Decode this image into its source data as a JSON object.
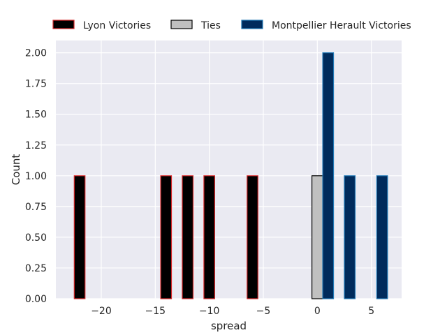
{
  "chart_data": {
    "type": "bar",
    "xlabel": "spread",
    "ylabel": "Count",
    "xlim": [
      -24.2,
      7.8
    ],
    "ylim": [
      0,
      2.1
    ],
    "xticks": [
      {
        "value": -20,
        "label": "−20"
      },
      {
        "value": -15,
        "label": "−15"
      },
      {
        "value": -10,
        "label": "−10"
      },
      {
        "value": -5,
        "label": "−5"
      },
      {
        "value": 0,
        "label": "0"
      },
      {
        "value": 5,
        "label": "5"
      }
    ],
    "yticks": [
      {
        "value": 0,
        "label": "0.00"
      },
      {
        "value": 0.25,
        "label": "0.25"
      },
      {
        "value": 0.5,
        "label": "0.50"
      },
      {
        "value": 0.75,
        "label": "0.75"
      },
      {
        "value": 1,
        "label": "1.00"
      },
      {
        "value": 1.25,
        "label": "1.25"
      },
      {
        "value": 1.5,
        "label": "1.50"
      },
      {
        "value": 1.75,
        "label": "1.75"
      },
      {
        "value": 2,
        "label": "2.00"
      }
    ],
    "bin_width": 1,
    "grid": true,
    "legend_position": "top",
    "background_color": "#eaeaf2",
    "series": [
      {
        "name": "Lyon Victories",
        "fill": "#000000",
        "edge": "#d62728",
        "bins": [
          {
            "x0": -22.5,
            "count": 1
          },
          {
            "x0": -14.5,
            "count": 1
          },
          {
            "x0": -12.5,
            "count": 1
          },
          {
            "x0": -10.5,
            "count": 1
          },
          {
            "x0": -6.5,
            "count": 1
          }
        ]
      },
      {
        "name": "Ties",
        "fill": "#c0c0c0",
        "edge": "#000000",
        "bins": [
          {
            "x0": -0.5,
            "count": 1
          }
        ]
      },
      {
        "name": "Montpellier Herault Victories",
        "fill": "#002b5c",
        "edge": "#1f77b4",
        "bins": [
          {
            "x0": 0.5,
            "count": 2
          },
          {
            "x0": 2.5,
            "count": 1
          },
          {
            "x0": 5.5,
            "count": 1
          }
        ]
      }
    ]
  }
}
